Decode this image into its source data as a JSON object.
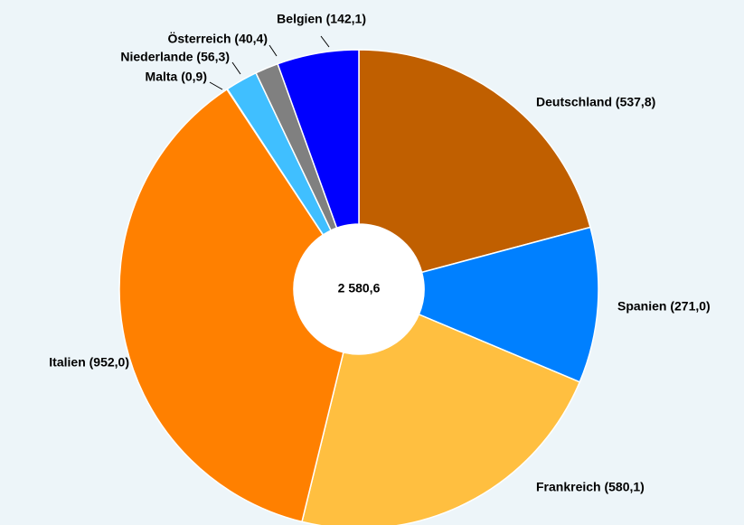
{
  "chart_data": {
    "type": "donut",
    "categories": [
      "Deutschland",
      "Spanien",
      "Frankreich",
      "Italien",
      "Malta",
      "Niederlande",
      "Österreich",
      "Belgien"
    ],
    "labels": [
      "Deutschland (537,8)",
      "Spanien (271,0)",
      "Frankreich (580,1)",
      "Italien (952,0)",
      "Malta (0,9)",
      "Niederlande (56,3)",
      "Österreich (40,4)",
      "Belgien (142,1)"
    ],
    "values": [
      537.8,
      271.0,
      580.1,
      952.0,
      0.9,
      56.3,
      40.4,
      142.1
    ],
    "colors": [
      "#c05f00",
      "#0080ff",
      "#ffbf40",
      "#ff8000",
      "#000000",
      "#40bfff",
      "#808080",
      "#0000ff"
    ],
    "center_label": "2 580,6"
  }
}
